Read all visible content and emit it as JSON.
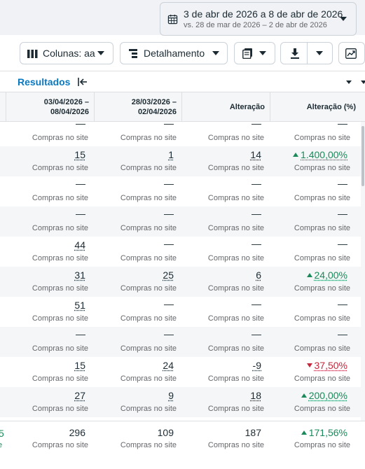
{
  "date_range": {
    "main": "3 de abr de 2026 a 8 de abr de 2026",
    "compare": "vs. 28 de mar de 2026 – 2 de abr de 2026",
    "icon": "calendar-icon"
  },
  "toolbar": {
    "columns_label": "Colunas: aa",
    "breakdown_label": "Detalhamento",
    "icons": [
      "columns-icon",
      "breakdown-icon",
      "reports-icon",
      "download-icon",
      "chart-icon"
    ]
  },
  "results": {
    "label": "Resultados"
  },
  "table": {
    "headers": [
      {
        "line1": "03/04/2026 –",
        "line2": "08/04/2026"
      },
      {
        "line1": "28/03/2026 –",
        "line2": "02/04/2026"
      },
      {
        "line1": "Alteração",
        "line2": ""
      },
      {
        "line1": "Alteração (%)",
        "line2": ""
      }
    ],
    "metric_label": "Compras no site",
    "rows": [
      [
        "—",
        "—",
        "—",
        "—"
      ],
      [
        "15",
        "1",
        "14",
        "1.400,00%"
      ],
      [
        "—",
        "—",
        "—",
        "—"
      ],
      [
        "—",
        "—",
        "—",
        "—"
      ],
      [
        "44",
        "—",
        "—",
        "—"
      ],
      [
        "31",
        "25",
        "6",
        "24,00%"
      ],
      [
        "51",
        "—",
        "—",
        "—"
      ],
      [
        "—",
        "—",
        "—",
        "—"
      ],
      [
        "15",
        "24",
        "-9",
        "37,50%"
      ],
      [
        "27",
        "9",
        "18",
        "200,00%"
      ]
    ],
    "trends": [
      "none",
      "up",
      "none",
      "none",
      "none",
      "up",
      "none",
      "none",
      "down",
      "up"
    ],
    "totals": [
      "296",
      "109",
      "187",
      "171,56%"
    ],
    "totals_trend": "up"
  },
  "colors": {
    "accent": "#0a78be",
    "positive": "#1b8a5a",
    "negative": "#c5283d"
  }
}
